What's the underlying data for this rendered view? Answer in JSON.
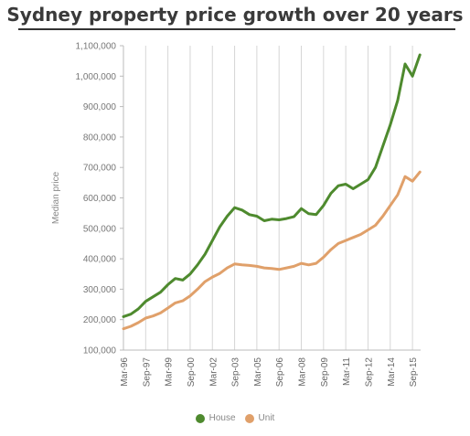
{
  "chart_data": {
    "type": "line",
    "title": "Sydney property price growth over 20 years",
    "ylabel": "Median price",
    "xlabel": "",
    "ylim": [
      100000,
      1100000
    ],
    "yticks": [
      100000,
      200000,
      300000,
      400000,
      500000,
      600000,
      700000,
      800000,
      900000,
      1000000,
      1100000
    ],
    "ytick_labels": [
      "100,000",
      "200,000",
      "300,000",
      "400,000",
      "500,000",
      "600,000",
      "700,000",
      "800,000",
      "900,000",
      "1,000,000",
      "1,100,000"
    ],
    "xtick_labels": [
      "Mar-96",
      "Sep-97",
      "Mar-99",
      "Sep-00",
      "Mar-02",
      "Sep-03",
      "Mar-05",
      "Sep-06",
      "Mar-08",
      "Sep-09",
      "Mar-11",
      "Sep-12",
      "Mar-14",
      "Sep-15"
    ],
    "grid": "vertical",
    "legend_position": "bottom",
    "series": [
      {
        "name": "House",
        "color": "#4e8a2e",
        "points": [
          [
            "Mar-96",
            210000
          ],
          [
            "Sep-96",
            218000
          ],
          [
            "Mar-97",
            235000
          ],
          [
            "Sep-97",
            260000
          ],
          [
            "Mar-98",
            275000
          ],
          [
            "Sep-98",
            290000
          ],
          [
            "Mar-99",
            315000
          ],
          [
            "Sep-99",
            335000
          ],
          [
            "Mar-00",
            330000
          ],
          [
            "Sep-00",
            350000
          ],
          [
            "Mar-01",
            380000
          ],
          [
            "Sep-01",
            415000
          ],
          [
            "Mar-02",
            460000
          ],
          [
            "Sep-02",
            505000
          ],
          [
            "Mar-03",
            540000
          ],
          [
            "Sep-03",
            568000
          ],
          [
            "Mar-04",
            560000
          ],
          [
            "Sep-04",
            545000
          ],
          [
            "Mar-05",
            540000
          ],
          [
            "Sep-05",
            525000
          ],
          [
            "Mar-06",
            530000
          ],
          [
            "Sep-06",
            528000
          ],
          [
            "Mar-07",
            532000
          ],
          [
            "Sep-07",
            538000
          ],
          [
            "Mar-08",
            565000
          ],
          [
            "Sep-08",
            548000
          ],
          [
            "Mar-09",
            545000
          ],
          [
            "Sep-09",
            575000
          ],
          [
            "Mar-10",
            615000
          ],
          [
            "Sep-10",
            640000
          ],
          [
            "Mar-11",
            645000
          ],
          [
            "Sep-11",
            630000
          ],
          [
            "Mar-12",
            645000
          ],
          [
            "Sep-12",
            660000
          ],
          [
            "Mar-13",
            700000
          ],
          [
            "Sep-13",
            770000
          ],
          [
            "Mar-14",
            840000
          ],
          [
            "Sep-14",
            920000
          ],
          [
            "Mar-15",
            1040000
          ],
          [
            "Sep-15",
            1000000
          ],
          [
            "Mar-16",
            1070000
          ]
        ]
      },
      {
        "name": "Unit",
        "color": "#e0a06a",
        "points": [
          [
            "Mar-96",
            170000
          ],
          [
            "Sep-96",
            178000
          ],
          [
            "Mar-97",
            190000
          ],
          [
            "Sep-97",
            205000
          ],
          [
            "Mar-98",
            212000
          ],
          [
            "Sep-98",
            222000
          ],
          [
            "Mar-99",
            238000
          ],
          [
            "Sep-99",
            255000
          ],
          [
            "Mar-00",
            262000
          ],
          [
            "Sep-00",
            278000
          ],
          [
            "Mar-01",
            300000
          ],
          [
            "Sep-01",
            325000
          ],
          [
            "Mar-02",
            340000
          ],
          [
            "Sep-02",
            352000
          ],
          [
            "Mar-03",
            370000
          ],
          [
            "Sep-03",
            383000
          ],
          [
            "Mar-04",
            380000
          ],
          [
            "Sep-04",
            378000
          ],
          [
            "Mar-05",
            375000
          ],
          [
            "Sep-05",
            370000
          ],
          [
            "Mar-06",
            368000
          ],
          [
            "Sep-06",
            365000
          ],
          [
            "Mar-07",
            370000
          ],
          [
            "Sep-07",
            375000
          ],
          [
            "Mar-08",
            385000
          ],
          [
            "Sep-08",
            380000
          ],
          [
            "Mar-09",
            385000
          ],
          [
            "Sep-09",
            405000
          ],
          [
            "Mar-10",
            430000
          ],
          [
            "Sep-10",
            450000
          ],
          [
            "Mar-11",
            460000
          ],
          [
            "Sep-11",
            470000
          ],
          [
            "Mar-12",
            480000
          ],
          [
            "Sep-12",
            495000
          ],
          [
            "Mar-13",
            510000
          ],
          [
            "Sep-13",
            540000
          ],
          [
            "Mar-14",
            575000
          ],
          [
            "Sep-14",
            610000
          ],
          [
            "Mar-15",
            670000
          ],
          [
            "Sep-15",
            655000
          ],
          [
            "Mar-16",
            685000
          ]
        ]
      }
    ]
  }
}
